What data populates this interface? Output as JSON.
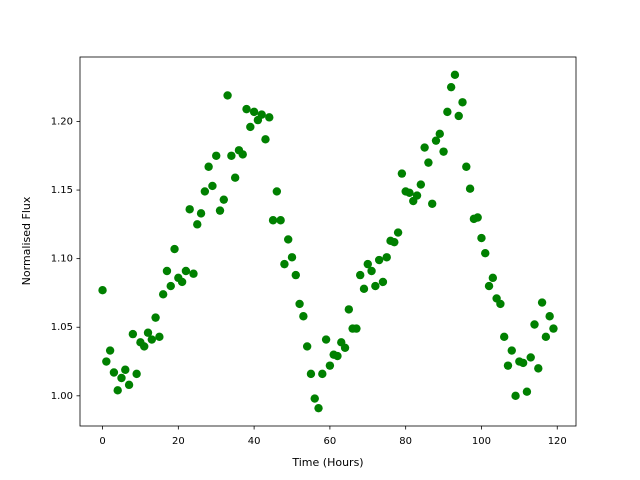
{
  "chart_data": {
    "type": "scatter",
    "color": "#008000",
    "xlabel": "Time (Hours)",
    "ylabel": "Normalised Flux",
    "x": [
      0,
      1,
      2,
      3,
      4,
      5,
      6,
      7,
      8,
      9,
      10,
      11,
      12,
      13,
      14,
      15,
      16,
      17,
      18,
      19,
      20,
      21,
      22,
      23,
      24,
      25,
      26,
      27,
      28,
      29,
      30,
      31,
      32,
      33,
      34,
      35,
      36,
      37,
      38,
      39,
      40,
      41,
      42,
      43,
      44,
      45,
      46,
      47,
      48,
      49,
      50,
      51,
      52,
      53,
      54,
      55,
      56,
      57,
      58,
      59,
      60,
      61,
      62,
      63,
      64,
      65,
      66,
      67,
      68,
      69,
      70,
      71,
      72,
      73,
      74,
      75,
      76,
      77,
      78,
      79,
      80,
      81,
      82,
      83,
      84,
      85,
      86,
      87,
      88,
      89,
      90,
      91,
      92,
      93,
      94,
      95,
      96,
      97,
      98,
      99,
      100,
      101,
      102,
      103,
      104,
      105,
      106,
      107,
      108,
      109,
      110,
      111,
      112,
      113,
      114,
      115,
      116,
      117,
      118,
      119
    ],
    "values": [
      1.077,
      1.025,
      1.033,
      1.017,
      1.004,
      1.013,
      1.019,
      1.008,
      1.045,
      1.016,
      1.039,
      1.036,
      1.046,
      1.041,
      1.057,
      1.043,
      1.074,
      1.091,
      1.08,
      1.107,
      1.086,
      1.083,
      1.091,
      1.136,
      1.089,
      1.125,
      1.133,
      1.149,
      1.167,
      1.153,
      1.175,
      1.135,
      1.143,
      1.219,
      1.175,
      1.159,
      1.179,
      1.176,
      1.209,
      1.196,
      1.207,
      1.201,
      1.205,
      1.187,
      1.203,
      1.128,
      1.149,
      1.128,
      1.096,
      1.114,
      1.101,
      1.088,
      1.067,
      1.058,
      1.036,
      1.016,
      0.998,
      0.991,
      1.016,
      1.041,
      1.022,
      1.03,
      1.029,
      1.039,
      1.035,
      1.063,
      1.049,
      1.049,
      1.088,
      1.078,
      1.096,
      1.091,
      1.08,
      1.099,
      1.083,
      1.101,
      1.113,
      1.112,
      1.119,
      1.162,
      1.149,
      1.148,
      1.142,
      1.146,
      1.154,
      1.181,
      1.17,
      1.14,
      1.186,
      1.191,
      1.178,
      1.207,
      1.225,
      1.234,
      1.204,
      1.214,
      1.167,
      1.151,
      1.129,
      1.13,
      1.115,
      1.104,
      1.08,
      1.086,
      1.071,
      1.067,
      1.043,
      1.022,
      1.033,
      1.0,
      1.025,
      1.024,
      1.003,
      1.028,
      1.052,
      1.02,
      1.068,
      1.043,
      1.058,
      1.049
    ],
    "xlim": [
      -5.95,
      124.95
    ],
    "ylim": [
      0.978,
      1.247
    ],
    "xticks": [
      0,
      20,
      40,
      60,
      80,
      100,
      120
    ],
    "yticks": [
      {
        "value": 1.0,
        "label": "1.00"
      },
      {
        "value": 1.05,
        "label": "1.05"
      },
      {
        "value": 1.1,
        "label": "1.10"
      },
      {
        "value": 1.15,
        "label": "1.15"
      },
      {
        "value": 1.2,
        "label": "1.20"
      }
    ],
    "grid": false
  }
}
